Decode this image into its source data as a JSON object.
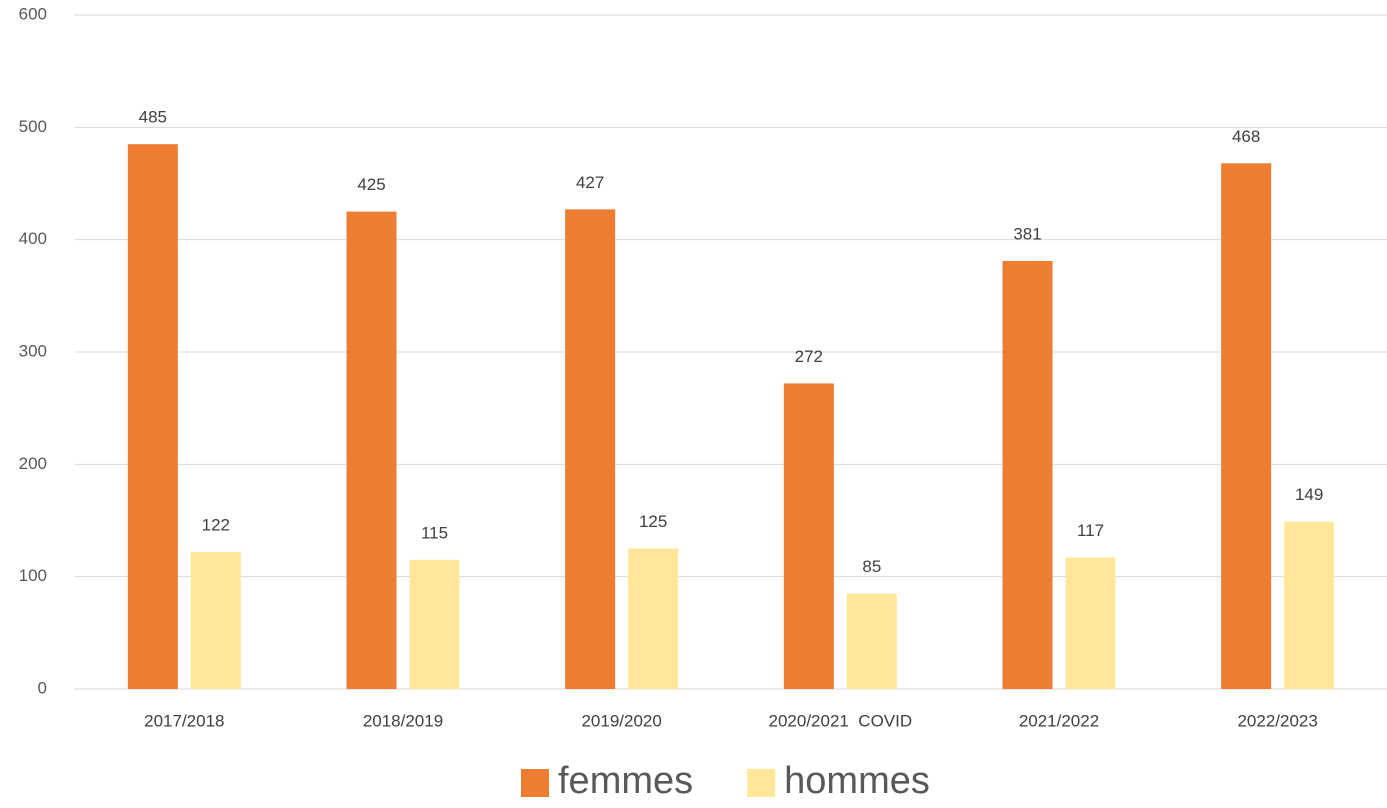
{
  "chart_data": {
    "type": "bar",
    "categories": [
      "2017/2018",
      "2018/2019",
      "2019/2020",
      "2020/2021  COVID",
      "2021/2022",
      "2022/2023"
    ],
    "series": [
      {
        "name": "femmes",
        "color": "#ED7D31",
        "values": [
          485,
          425,
          427,
          272,
          381,
          468
        ]
      },
      {
        "name": "hommes",
        "color": "#FFE699",
        "values": [
          122,
          115,
          125,
          85,
          117,
          149
        ]
      }
    ],
    "ylim": [
      0,
      600
    ],
    "yticks": [
      0,
      100,
      200,
      300,
      400,
      500,
      600
    ],
    "grid": true,
    "legend": "bottom"
  }
}
